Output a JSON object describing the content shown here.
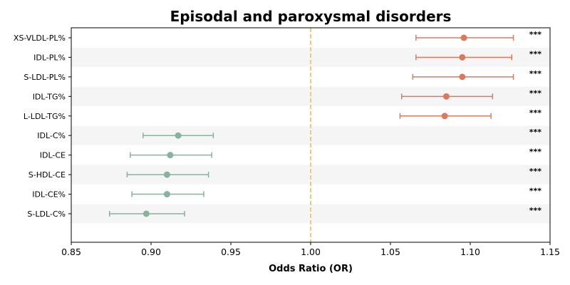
{
  "chart_data": {
    "type": "forest",
    "title": "Episodal and paroxysmal disorders",
    "xlabel": "Odds Ratio (OR)",
    "xlim": [
      0.85,
      1.15
    ],
    "xticks": [
      "0.85",
      "0.90",
      "0.95",
      "1.00",
      "1.05",
      "1.10",
      "1.15"
    ],
    "reference_line": 1.0,
    "colors": {
      "positive": "#d97a5e",
      "negative": "#85b39c",
      "reference": "#f3c77f",
      "band": "#f5f5f5"
    },
    "rows": [
      {
        "label": "XS-VLDL-PL%",
        "or": 1.096,
        "lo": 1.066,
        "hi": 1.127,
        "sig": "***"
      },
      {
        "label": "IDL-PL%",
        "or": 1.095,
        "lo": 1.066,
        "hi": 1.126,
        "sig": "***"
      },
      {
        "label": "S-LDL-PL%",
        "or": 1.095,
        "lo": 1.064,
        "hi": 1.127,
        "sig": "***"
      },
      {
        "label": "IDL-TG%",
        "or": 1.085,
        "lo": 1.057,
        "hi": 1.114,
        "sig": "***"
      },
      {
        "label": "L-LDL-TG%",
        "or": 1.084,
        "lo": 1.056,
        "hi": 1.113,
        "sig": "***"
      },
      {
        "label": "IDL-C%",
        "or": 0.917,
        "lo": 0.895,
        "hi": 0.939,
        "sig": "***"
      },
      {
        "label": "IDL-CE",
        "or": 0.912,
        "lo": 0.887,
        "hi": 0.938,
        "sig": "***"
      },
      {
        "label": "S-HDL-CE",
        "or": 0.91,
        "lo": 0.885,
        "hi": 0.936,
        "sig": "***"
      },
      {
        "label": "IDL-CE%",
        "or": 0.91,
        "lo": 0.888,
        "hi": 0.933,
        "sig": "***"
      },
      {
        "label": "S-LDL-C%",
        "or": 0.897,
        "lo": 0.874,
        "hi": 0.921,
        "sig": "***"
      }
    ]
  }
}
